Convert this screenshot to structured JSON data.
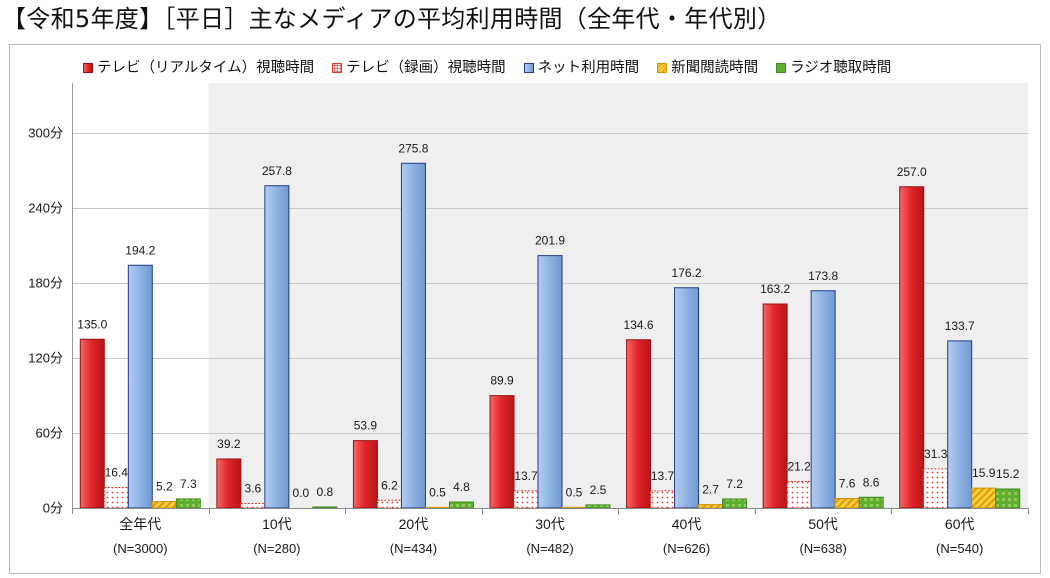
{
  "chart_data": {
    "type": "bar",
    "title": "【令和5年度】［平日］主なメディアの平均利用時間（全年代・年代別）",
    "categories": [
      "全年代",
      "10代",
      "20代",
      "30代",
      "40代",
      "50代",
      "60代"
    ],
    "category_n_labels": [
      "(N=3000)",
      "(N=280)",
      "(N=434)",
      "(N=482)",
      "(N=626)",
      "(N=638)",
      "(N=540)"
    ],
    "series": [
      {
        "name": "テレビ（リアルタイム）視聴時間",
        "color": "#e3262b",
        "values": [
          135.0,
          39.2,
          53.9,
          89.9,
          134.6,
          163.2,
          257.0
        ]
      },
      {
        "name": "テレビ（録画）視聴時間",
        "color": "#d93a32",
        "values": [
          16.4,
          3.6,
          6.2,
          13.7,
          13.7,
          21.2,
          31.3
        ]
      },
      {
        "name": "ネット利用時間",
        "color": "#8db3e2",
        "values": [
          194.2,
          257.8,
          275.8,
          201.9,
          176.2,
          173.8,
          133.7
        ]
      },
      {
        "name": "新聞閲読時間",
        "color": "#f6cf45",
        "values": [
          5.2,
          0.0,
          0.5,
          0.5,
          2.7,
          7.6,
          15.9
        ]
      },
      {
        "name": "ラジオ聴取時間",
        "color": "#5fae2e",
        "values": [
          7.3,
          0.8,
          4.8,
          2.5,
          7.2,
          8.6,
          15.2
        ]
      }
    ],
    "y_ticks": [
      0,
      60,
      120,
      180,
      240,
      300
    ],
    "y_tick_labels": [
      "0分",
      "60分",
      "120分",
      "180分",
      "240分",
      "300分"
    ],
    "ylim": [
      0,
      340
    ],
    "grid": true,
    "legend_position": "top"
  }
}
